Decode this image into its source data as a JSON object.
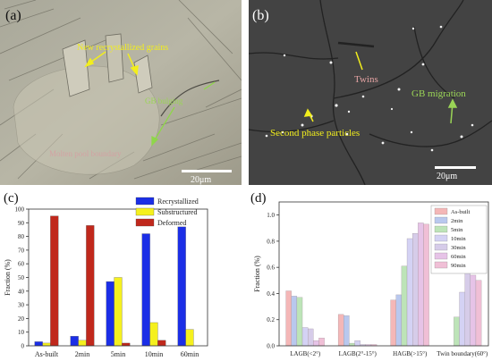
{
  "figure": {
    "panel_a": {
      "label": "(a)",
      "annotations": {
        "new_grains": "New recrystallized grains",
        "gb_bulging": "GB bulging",
        "molten_pool": "Molten pool boundary"
      },
      "scale_bar": "20μm"
    },
    "panel_b": {
      "label": "(b)",
      "annotations": {
        "twins": "Twins",
        "gb_migration": "GB migration",
        "second_phase": "Second phase particles"
      },
      "scale_bar": "20μm"
    }
  },
  "chart_data": [
    {
      "type": "bar",
      "panel": "(c)",
      "ylabel": "Fraction (%)",
      "ylim": [
        0,
        100
      ],
      "yticks": [
        0,
        10,
        20,
        30,
        40,
        50,
        60,
        70,
        80,
        90,
        100
      ],
      "categories": [
        "As-built",
        "2min",
        "5min",
        "10min",
        "60min"
      ],
      "series": [
        {
          "name": "Recrystallized",
          "color": "#1b2ee6",
          "values": [
            3,
            7,
            47,
            82,
            87
          ]
        },
        {
          "name": "Substructured",
          "color": "#f5f01e",
          "values": [
            2,
            4,
            50,
            17,
            12
          ]
        },
        {
          "name": "Deformed",
          "color": "#c0281c",
          "values": [
            95,
            88,
            2,
            4,
            0
          ]
        }
      ],
      "legend": "top-right"
    },
    {
      "type": "bar",
      "panel": "(d)",
      "ylabel": "Fraction (%)",
      "ylim": [
        0,
        1.1
      ],
      "yticks": [
        "0.0",
        "0.2",
        "0.4",
        "0.6",
        "0.8",
        "1.0"
      ],
      "categories": [
        "LAGB(<2°)",
        "LAGB(2°-15°)",
        "HAGB(>15°)",
        "Twin boundary(60°)"
      ],
      "series": [
        {
          "name": "As-built",
          "color": "#f4b7b7",
          "values": [
            0.42,
            0.24,
            0.35,
            0.0
          ]
        },
        {
          "name": "2min",
          "color": "#b9c8ee",
          "values": [
            0.38,
            0.23,
            0.39,
            0.0
          ]
        },
        {
          "name": "5min",
          "color": "#bde4b8",
          "values": [
            0.37,
            0.02,
            0.61,
            0.22
          ]
        },
        {
          "name": "10min",
          "color": "#d4d2f4",
          "values": [
            0.14,
            0.04,
            0.82,
            0.41
          ]
        },
        {
          "name": "30min",
          "color": "#d6cce9",
          "values": [
            0.13,
            0.01,
            0.86,
            0.57
          ]
        },
        {
          "name": "60min",
          "color": "#e6c3e7",
          "values": [
            0.04,
            0.01,
            0.94,
            0.54
          ]
        },
        {
          "name": "90min",
          "color": "#f0bfd6",
          "values": [
            0.06,
            0.01,
            0.93,
            0.5
          ]
        }
      ],
      "legend": "top-right"
    }
  ]
}
